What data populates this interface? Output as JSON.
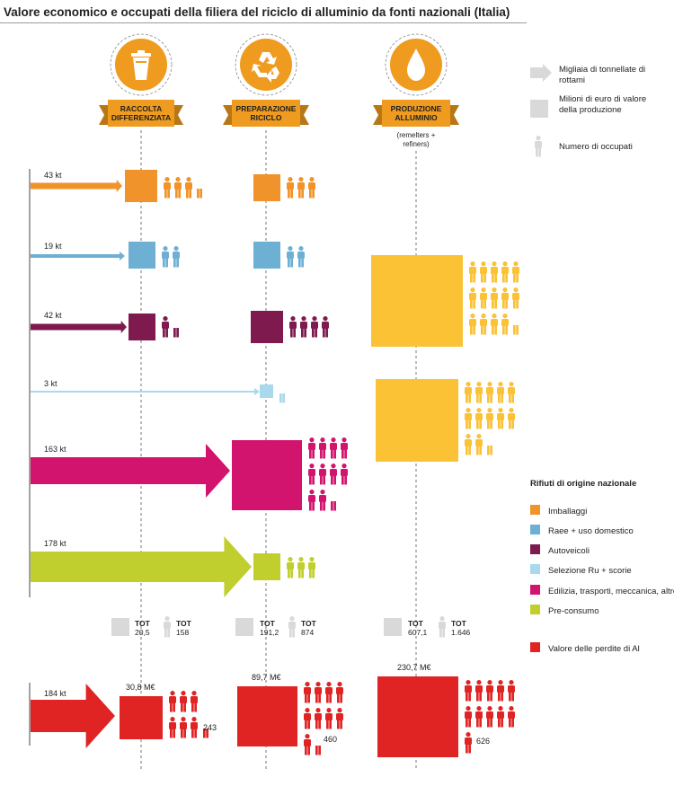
{
  "title": "Valore economico e occupati della filiera del riciclo di alluminio da fonti nazionali (Italia)",
  "legend_keys": {
    "tonnes": "Migliaia di tonnellate di rottami",
    "value": "Milioni di euro di valore della produzione",
    "jobs": "Numero di occupati"
  },
  "stages": [
    {
      "name": "RACCOLTA DIFFERENZIATA",
      "icon": "trash-bin-icon"
    },
    {
      "name": "PREPARAZIONE RICICLO",
      "icon": "recycle-icon"
    },
    {
      "name": "PRODUZIONE ALLUMINIO",
      "icon": "drop-icon",
      "note": "(remelters + refiners)"
    }
  ],
  "categories_title": "Rifiuti di origine nazionale",
  "categories": [
    {
      "name": "Imballaggi",
      "color": "#f0932a",
      "kt": "43 kt"
    },
    {
      "name": "Raee + uso domestico",
      "color": "#6eb0d3",
      "kt": "19 kt"
    },
    {
      "name": "Autoveicoli",
      "color": "#7f1a4e",
      "kt": "42 kt"
    },
    {
      "name": "Selezione Ru + scorie",
      "color": "#a9d9ee",
      "kt": "3 kt"
    },
    {
      "name": "Edilizia, trasporti, meccanica, altro",
      "color": "#d3146f",
      "kt": "163 kt"
    },
    {
      "name": "Pre-consumo",
      "color": "#c1cf2e",
      "kt": "178 kt"
    }
  ],
  "production_color": "#fbc236",
  "totals": [
    {
      "label": "TOT",
      "value": "20,5",
      "jobs": "158"
    },
    {
      "label": "TOT",
      "value": "191,2",
      "jobs": "874"
    },
    {
      "label": "TOT",
      "value": "607,1",
      "jobs": "1.646"
    }
  ],
  "losses": {
    "legend": "Valore delle perdite di Al",
    "color": "#e02424",
    "kt": "184 kt",
    "values": [
      "30,8 M€",
      "89,7 M€",
      "230,7 M€"
    ],
    "jobs": [
      "243",
      "460",
      "626"
    ]
  }
}
